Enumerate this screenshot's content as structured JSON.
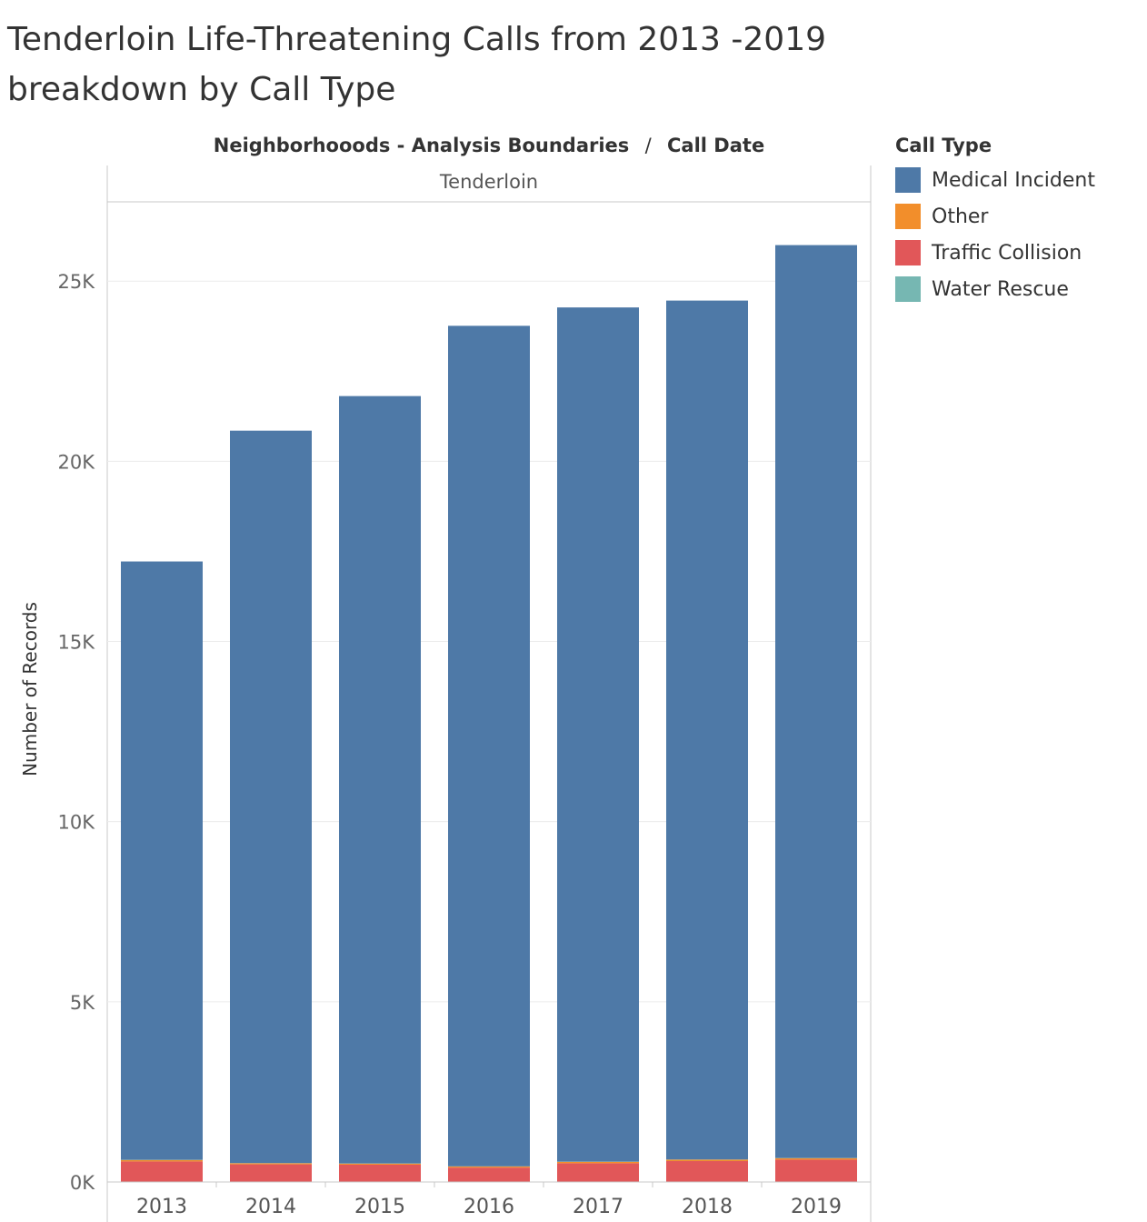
{
  "title": {
    "line1": "Tenderloin Life-Threatening Calls from 2013 -2019",
    "line2": "breakdown by Call Type"
  },
  "header": {
    "rows_field": "Neighborhooods - Analysis Boundaries",
    "separator": "/",
    "columns_field": "Call Date"
  },
  "pane_label": "Tenderloin",
  "legend": {
    "title": "Call Type",
    "items": [
      {
        "label": "Medical Incident",
        "color": "#4e79a7"
      },
      {
        "label": "Other",
        "color": "#f28e2b"
      },
      {
        "label": "Traffic Collision",
        "color": "#e15759"
      },
      {
        "label": "Water Rescue",
        "color": "#76b7b2"
      }
    ]
  },
  "chart_data": {
    "type": "bar",
    "stacked": true,
    "categories": [
      "2013",
      "2014",
      "2015",
      "2016",
      "2017",
      "2018",
      "2019"
    ],
    "series": [
      {
        "name": "Traffic Collision",
        "color": "#e15759",
        "values": [
          570,
          490,
          480,
          400,
          520,
          580,
          620
        ]
      },
      {
        "name": "Other",
        "color": "#f28e2b",
        "values": [
          40,
          30,
          30,
          30,
          40,
          40,
          40
        ]
      },
      {
        "name": "Water Rescue",
        "color": "#76b7b2",
        "values": [
          5,
          5,
          5,
          5,
          5,
          5,
          5
        ]
      },
      {
        "name": "Medical Incident",
        "color": "#4e79a7",
        "values": [
          16605,
          20325,
          21295,
          23325,
          23705,
          23835,
          25335
        ]
      }
    ],
    "ylabel": "Number of Records",
    "xlabel": "",
    "ylim": [
      0,
      27200
    ],
    "yticks": [
      0,
      5000,
      10000,
      15000,
      20000,
      25000
    ],
    "ytick_labels": [
      "0K",
      "5K",
      "10K",
      "15K",
      "20K",
      "25K"
    ],
    "grid": true,
    "legend_position": "right"
  }
}
